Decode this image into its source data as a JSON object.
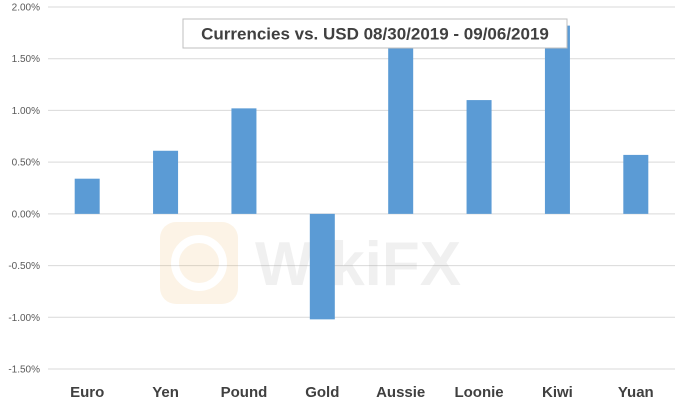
{
  "chart_data": {
    "type": "bar",
    "title": "Currencies vs. USD 08/30/2019 - 09/06/2019",
    "categories": [
      "Euro",
      "Yen",
      "Pound",
      "Gold",
      "Aussie",
      "Loonie",
      "Kiwi",
      "Yuan"
    ],
    "values": [
      0.34,
      0.61,
      1.02,
      -1.02,
      1.65,
      1.1,
      1.82,
      0.57
    ],
    "unit": "%",
    "ylim": [
      -1.5,
      2.0
    ],
    "yticks": [
      "2.00%",
      "1.50%",
      "1.00%",
      "0.50%",
      "0.00%",
      "-0.50%",
      "-1.00%",
      "-1.50%"
    ],
    "ytick_values": [
      2.0,
      1.5,
      1.0,
      0.5,
      0.0,
      -0.5,
      -1.0,
      -1.5
    ],
    "grid": true,
    "legend": "none",
    "bar_color": "#5b9bd5"
  },
  "watermark": {
    "text": "WikiFX"
  }
}
